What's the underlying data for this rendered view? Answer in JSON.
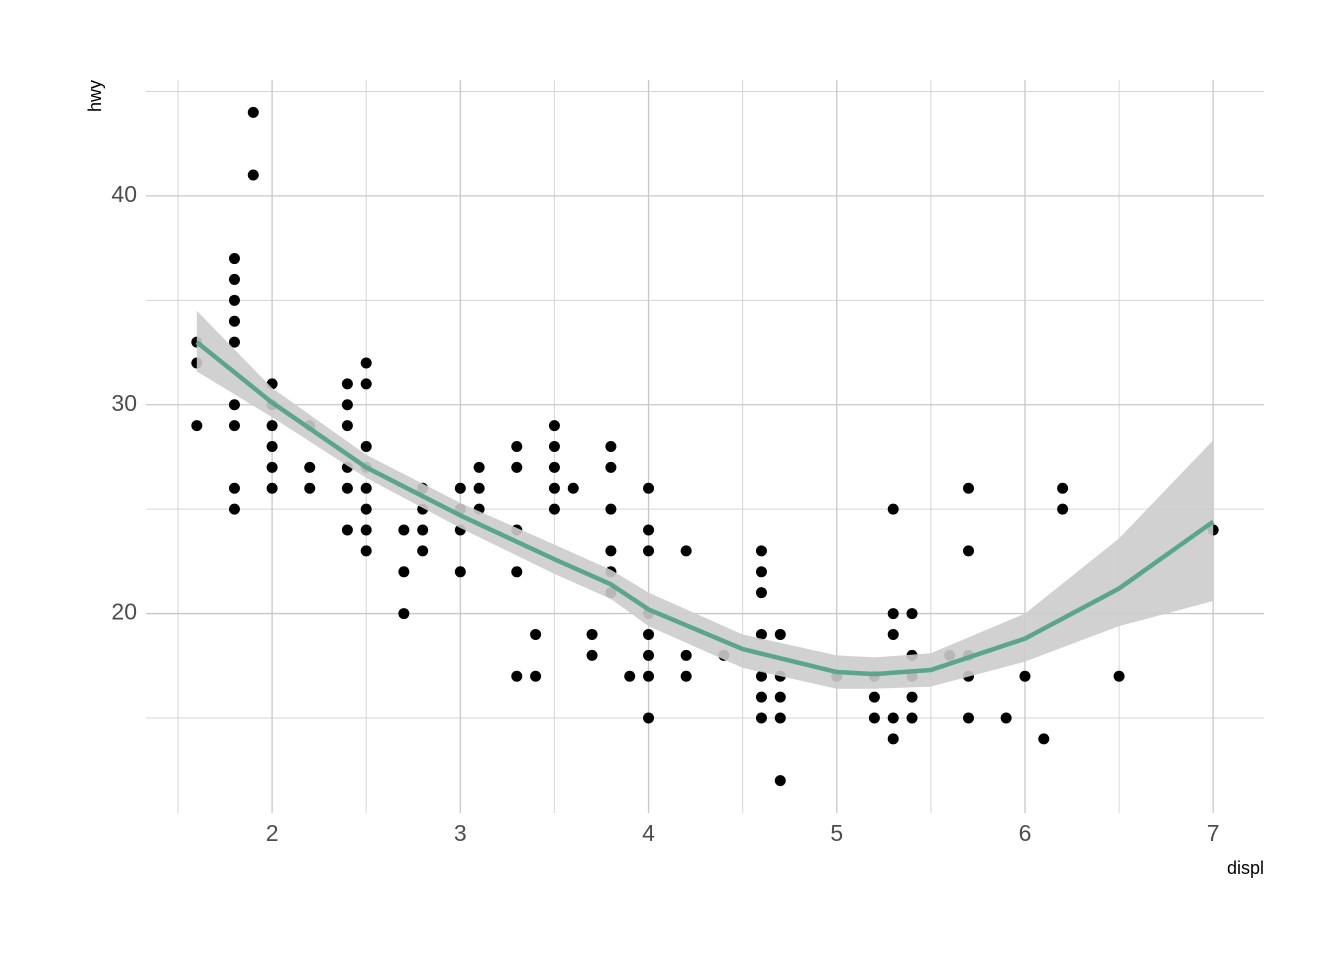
{
  "chart_data": {
    "type": "scatter",
    "xlabel": "displ",
    "ylabel": "hwy",
    "x": [
      1.6,
      1.6,
      1.6,
      1.8,
      1.8,
      1.8,
      1.8,
      1.8,
      1.8,
      1.8,
      1.8,
      1.8,
      1.9,
      1.9,
      2.0,
      2.0,
      2.0,
      2.0,
      2.0,
      2.0,
      2.2,
      2.2,
      2.2,
      2.4,
      2.4,
      2.4,
      2.4,
      2.4,
      2.4,
      2.5,
      2.5,
      2.5,
      2.5,
      2.5,
      2.5,
      2.5,
      2.5,
      2.7,
      2.7,
      2.7,
      2.8,
      2.8,
      2.8,
      2.8,
      3.0,
      3.0,
      3.0,
      3.0,
      3.1,
      3.1,
      3.1,
      3.3,
      3.3,
      3.3,
      3.3,
      3.3,
      3.4,
      3.4,
      3.5,
      3.5,
      3.5,
      3.5,
      3.5,
      3.6,
      3.7,
      3.7,
      3.8,
      3.8,
      3.8,
      3.8,
      3.8,
      3.8,
      3.9,
      4.0,
      4.0,
      4.0,
      4.0,
      4.0,
      4.0,
      4.0,
      4.0,
      4.2,
      4.2,
      4.2,
      4.4,
      4.6,
      4.6,
      4.6,
      4.6,
      4.6,
      4.6,
      4.6,
      4.7,
      4.7,
      4.7,
      4.7,
      4.7,
      5.0,
      5.2,
      5.2,
      5.2,
      5.3,
      5.3,
      5.3,
      5.3,
      5.3,
      5.4,
      5.4,
      5.4,
      5.4,
      5.4,
      5.6,
      5.7,
      5.7,
      5.7,
      5.7,
      5.7,
      5.9,
      6.0,
      6.1,
      6.2,
      6.2,
      6.5,
      7.0
    ],
    "y": [
      33,
      32,
      29,
      37,
      36,
      35,
      34,
      33,
      30,
      29,
      26,
      25,
      44,
      41,
      31,
      30,
      29,
      28,
      27,
      26,
      29,
      27,
      26,
      31,
      30,
      29,
      27,
      26,
      24,
      32,
      31,
      28,
      27,
      26,
      25,
      24,
      23,
      24,
      22,
      20,
      26,
      25,
      24,
      23,
      26,
      25,
      24,
      22,
      27,
      26,
      25,
      28,
      27,
      24,
      22,
      17,
      19,
      17,
      29,
      28,
      27,
      26,
      25,
      26,
      19,
      18,
      28,
      27,
      25,
      23,
      22,
      21,
      17,
      26,
      24,
      23,
      20,
      19,
      18,
      17,
      15,
      23,
      18,
      17,
      18,
      23,
      22,
      21,
      19,
      17,
      16,
      15,
      19,
      17,
      16,
      15,
      12,
      17,
      17,
      16,
      15,
      25,
      20,
      19,
      15,
      14,
      20,
      18,
      17,
      16,
      15,
      18,
      26,
      23,
      18,
      17,
      15,
      15,
      17,
      14,
      26,
      25,
      17,
      24
    ],
    "color": "#000000",
    "smooth": {
      "x": [
        1.6,
        2.0,
        2.5,
        3.0,
        3.5,
        3.8,
        4.0,
        4.5,
        5.0,
        5.2,
        5.5,
        6.0,
        6.5,
        7.0
      ],
      "y": [
        33.0,
        30.1,
        27.0,
        24.7,
        22.6,
        21.4,
        20.2,
        18.3,
        17.2,
        17.1,
        17.3,
        18.8,
        21.2,
        24.4
      ],
      "lower": [
        31.6,
        29.4,
        26.5,
        24.1,
        21.9,
        20.7,
        19.4,
        17.4,
        16.4,
        16.4,
        16.5,
        17.7,
        19.4,
        20.6
      ],
      "upper": [
        34.5,
        30.8,
        27.6,
        25.3,
        23.3,
        22.1,
        21.0,
        19.0,
        18.0,
        17.9,
        18.1,
        20.0,
        23.6,
        28.3
      ],
      "color": "#5aa58c",
      "band_color": "#cccccc"
    },
    "xlim": [
      1.33,
      7.27
    ],
    "ylim": [
      10.45,
      45.55
    ],
    "xticks": [
      2,
      3,
      4,
      5,
      6,
      7
    ],
    "yticks": [
      20,
      30,
      40
    ],
    "xminor": [
      1.5,
      2.5,
      3.5,
      4.5,
      5.5,
      6.5
    ],
    "yminor": [
      15,
      25,
      35,
      45
    ],
    "grid": true
  }
}
